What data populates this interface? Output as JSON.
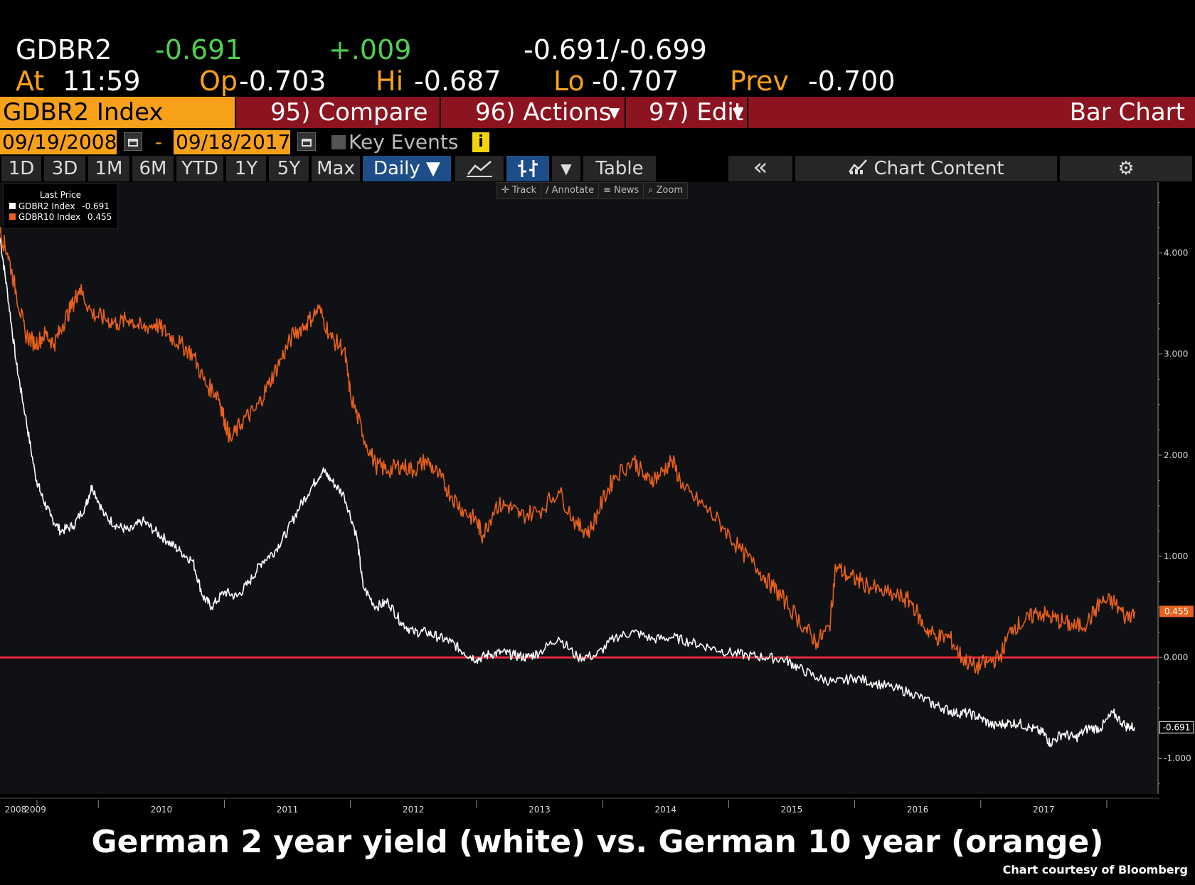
{
  "quote": {
    "ticker": "GDBR2",
    "last": "-0.691",
    "change": "+.009",
    "bid_ask": "-0.691/-0.699",
    "at_label": "At",
    "at_time": "11:59",
    "open_label": "Op",
    "open": "-0.703",
    "high_label": "Hi",
    "high": "-0.687",
    "low_label": "Lo",
    "low": "-0.707",
    "prev_label": "Prev",
    "prev": "-0.700"
  },
  "menubar": {
    "security": "GDBR2 Index",
    "compare": "95) Compare",
    "actions": "96) Actions",
    "edit": "97) Edit",
    "chart_type": "Bar Chart"
  },
  "datebar": {
    "start_date": "09/19/2008",
    "dash": "-",
    "end_date": "09/18/2017",
    "key_events": "Key Events",
    "info_icon": "i"
  },
  "toolbar": {
    "periods": [
      "1D",
      "3D",
      "1M",
      "6M",
      "YTD",
      "1Y",
      "5Y",
      "Max"
    ],
    "frequency": "Daily ▼",
    "table": "Table",
    "collapse": "«",
    "chart_content": "Chart Content"
  },
  "chart_tools": [
    "Track",
    "Annotate",
    "News",
    "Zoom"
  ],
  "legend": {
    "header": "Last Price",
    "items": [
      {
        "name": "GDBR2 Index",
        "value": "-0.691",
        "color": "#ffffff"
      },
      {
        "name": "GDBR10 Index",
        "value": "0.455",
        "color": "#e8601c"
      }
    ]
  },
  "caption": {
    "title": "German 2 year yield (white) vs. German 10 year (orange)",
    "credit": "Chart courtesy of Bloomberg"
  },
  "chart_data": {
    "type": "line",
    "x_tick_labels": [
      "2008",
      "2009",
      "2010",
      "2011",
      "2012",
      "2013",
      "2014",
      "2015",
      "2016",
      "2017"
    ],
    "x_tick_dates": [
      2008.72,
      2009.0,
      2010.0,
      2011.0,
      2012.0,
      2013.0,
      2014.0,
      2015.0,
      2016.0,
      2017.0
    ],
    "y_tick_labels": [
      "4.000",
      "3.000",
      "2.000",
      "1.000",
      "0.000",
      "-1.000"
    ],
    "y_tick_values": [
      4,
      3,
      2,
      1,
      0,
      -1
    ],
    "xlim": [
      2008.72,
      2017.72
    ],
    "ylim": [
      -1.35,
      4.7
    ],
    "reference_line": {
      "value": 0,
      "color": "#e8283a"
    },
    "series": [
      {
        "name": "GDBR2 Index",
        "color": "#ffffff",
        "last_value_label": "-0.691",
        "points": [
          [
            2008.72,
            4.15
          ],
          [
            2008.78,
            3.6
          ],
          [
            2008.85,
            2.9
          ],
          [
            2008.92,
            2.4
          ],
          [
            2009.0,
            1.8
          ],
          [
            2009.05,
            1.6
          ],
          [
            2009.12,
            1.4
          ],
          [
            2009.2,
            1.25
          ],
          [
            2009.3,
            1.3
          ],
          [
            2009.4,
            1.5
          ],
          [
            2009.45,
            1.7
          ],
          [
            2009.55,
            1.4
          ],
          [
            2009.65,
            1.3
          ],
          [
            2009.75,
            1.25
          ],
          [
            2009.85,
            1.35
          ],
          [
            2009.95,
            1.25
          ],
          [
            2010.05,
            1.15
          ],
          [
            2010.15,
            1.05
          ],
          [
            2010.25,
            0.95
          ],
          [
            2010.33,
            0.6
          ],
          [
            2010.4,
            0.5
          ],
          [
            2010.5,
            0.65
          ],
          [
            2010.6,
            0.6
          ],
          [
            2010.7,
            0.75
          ],
          [
            2010.8,
            0.95
          ],
          [
            2010.9,
            1.05
          ],
          [
            2011.0,
            1.25
          ],
          [
            2011.1,
            1.5
          ],
          [
            2011.2,
            1.7
          ],
          [
            2011.28,
            1.85
          ],
          [
            2011.35,
            1.75
          ],
          [
            2011.45,
            1.6
          ],
          [
            2011.55,
            1.2
          ],
          [
            2011.6,
            0.7
          ],
          [
            2011.7,
            0.5
          ],
          [
            2011.8,
            0.55
          ],
          [
            2011.9,
            0.35
          ],
          [
            2012.0,
            0.25
          ],
          [
            2012.1,
            0.25
          ],
          [
            2012.2,
            0.2
          ],
          [
            2012.3,
            0.15
          ],
          [
            2012.4,
            0.05
          ],
          [
            2012.5,
            -0.02
          ],
          [
            2012.6,
            0.03
          ],
          [
            2012.7,
            0.05
          ],
          [
            2012.8,
            0.02
          ],
          [
            2012.9,
            0.0
          ],
          [
            2013.0,
            0.05
          ],
          [
            2013.15,
            0.2
          ],
          [
            2013.3,
            0.0
          ],
          [
            2013.45,
            0.02
          ],
          [
            2013.6,
            0.2
          ],
          [
            2013.75,
            0.25
          ],
          [
            2013.9,
            0.18
          ],
          [
            2014.05,
            0.2
          ],
          [
            2014.2,
            0.15
          ],
          [
            2014.35,
            0.1
          ],
          [
            2014.5,
            0.05
          ],
          [
            2014.65,
            0.02
          ],
          [
            2014.8,
            0.0
          ],
          [
            2014.95,
            -0.02
          ],
          [
            2015.05,
            -0.1
          ],
          [
            2015.2,
            -0.2
          ],
          [
            2015.35,
            -0.25
          ],
          [
            2015.5,
            -0.2
          ],
          [
            2015.65,
            -0.25
          ],
          [
            2015.8,
            -0.3
          ],
          [
            2015.95,
            -0.35
          ],
          [
            2016.1,
            -0.45
          ],
          [
            2016.2,
            -0.5
          ],
          [
            2016.3,
            -0.55
          ],
          [
            2016.4,
            -0.55
          ],
          [
            2016.5,
            -0.6
          ],
          [
            2016.6,
            -0.68
          ],
          [
            2016.7,
            -0.65
          ],
          [
            2016.8,
            -0.65
          ],
          [
            2016.9,
            -0.7
          ],
          [
            2017.0,
            -0.75
          ],
          [
            2017.05,
            -0.85
          ],
          [
            2017.15,
            -0.75
          ],
          [
            2017.25,
            -0.8
          ],
          [
            2017.35,
            -0.7
          ],
          [
            2017.45,
            -0.7
          ],
          [
            2017.55,
            -0.55
          ],
          [
            2017.65,
            -0.68
          ],
          [
            2017.72,
            -0.691
          ]
        ]
      },
      {
        "name": "GDBR10 Index",
        "color": "#e8601c",
        "last_value_label": "0.455",
        "points": [
          [
            2008.72,
            4.2
          ],
          [
            2008.78,
            4.0
          ],
          [
            2008.85,
            3.6
          ],
          [
            2008.92,
            3.2
          ],
          [
            2009.0,
            3.1
          ],
          [
            2009.08,
            3.2
          ],
          [
            2009.15,
            3.1
          ],
          [
            2009.22,
            3.3
          ],
          [
            2009.3,
            3.5
          ],
          [
            2009.35,
            3.65
          ],
          [
            2009.45,
            3.4
          ],
          [
            2009.55,
            3.35
          ],
          [
            2009.65,
            3.3
          ],
          [
            2009.75,
            3.35
          ],
          [
            2009.85,
            3.25
          ],
          [
            2009.95,
            3.3
          ],
          [
            2010.05,
            3.2
          ],
          [
            2010.15,
            3.1
          ],
          [
            2010.25,
            3.0
          ],
          [
            2010.35,
            2.7
          ],
          [
            2010.45,
            2.6
          ],
          [
            2010.5,
            2.35
          ],
          [
            2010.55,
            2.15
          ],
          [
            2010.65,
            2.35
          ],
          [
            2010.75,
            2.45
          ],
          [
            2010.85,
            2.7
          ],
          [
            2010.95,
            2.95
          ],
          [
            2011.05,
            3.2
          ],
          [
            2011.15,
            3.3
          ],
          [
            2011.25,
            3.45
          ],
          [
            2011.35,
            3.15
          ],
          [
            2011.45,
            3.05
          ],
          [
            2011.5,
            2.6
          ],
          [
            2011.6,
            2.2
          ],
          [
            2011.7,
            1.9
          ],
          [
            2011.8,
            1.85
          ],
          [
            2011.9,
            1.9
          ],
          [
            2012.0,
            1.85
          ],
          [
            2012.1,
            1.95
          ],
          [
            2012.2,
            1.8
          ],
          [
            2012.3,
            1.6
          ],
          [
            2012.4,
            1.45
          ],
          [
            2012.5,
            1.35
          ],
          [
            2012.55,
            1.2
          ],
          [
            2012.65,
            1.5
          ],
          [
            2012.75,
            1.5
          ],
          [
            2012.85,
            1.4
          ],
          [
            2013.0,
            1.45
          ],
          [
            2013.15,
            1.65
          ],
          [
            2013.3,
            1.3
          ],
          [
            2013.4,
            1.25
          ],
          [
            2013.5,
            1.55
          ],
          [
            2013.6,
            1.8
          ],
          [
            2013.75,
            1.95
          ],
          [
            2013.85,
            1.75
          ],
          [
            2013.95,
            1.8
          ],
          [
            2014.05,
            1.95
          ],
          [
            2014.15,
            1.65
          ],
          [
            2014.3,
            1.5
          ],
          [
            2014.45,
            1.3
          ],
          [
            2014.6,
            1.05
          ],
          [
            2014.75,
            0.85
          ],
          [
            2014.85,
            0.7
          ],
          [
            2014.95,
            0.55
          ],
          [
            2015.1,
            0.3
          ],
          [
            2015.2,
            0.15
          ],
          [
            2015.3,
            0.3
          ],
          [
            2015.35,
            0.9
          ],
          [
            2015.45,
            0.8
          ],
          [
            2015.55,
            0.75
          ],
          [
            2015.7,
            0.65
          ],
          [
            2015.85,
            0.6
          ],
          [
            2015.95,
            0.55
          ],
          [
            2016.05,
            0.3
          ],
          [
            2016.15,
            0.2
          ],
          [
            2016.25,
            0.2
          ],
          [
            2016.35,
            0.0
          ],
          [
            2016.45,
            -0.1
          ],
          [
            2016.55,
            -0.05
          ],
          [
            2016.65,
            0.0
          ],
          [
            2016.75,
            0.3
          ],
          [
            2016.85,
            0.35
          ],
          [
            2016.95,
            0.45
          ],
          [
            2017.05,
            0.4
          ],
          [
            2017.15,
            0.35
          ],
          [
            2017.25,
            0.3
          ],
          [
            2017.35,
            0.35
          ],
          [
            2017.45,
            0.55
          ],
          [
            2017.55,
            0.55
          ],
          [
            2017.65,
            0.4
          ],
          [
            2017.72,
            0.455
          ]
        ]
      }
    ]
  }
}
